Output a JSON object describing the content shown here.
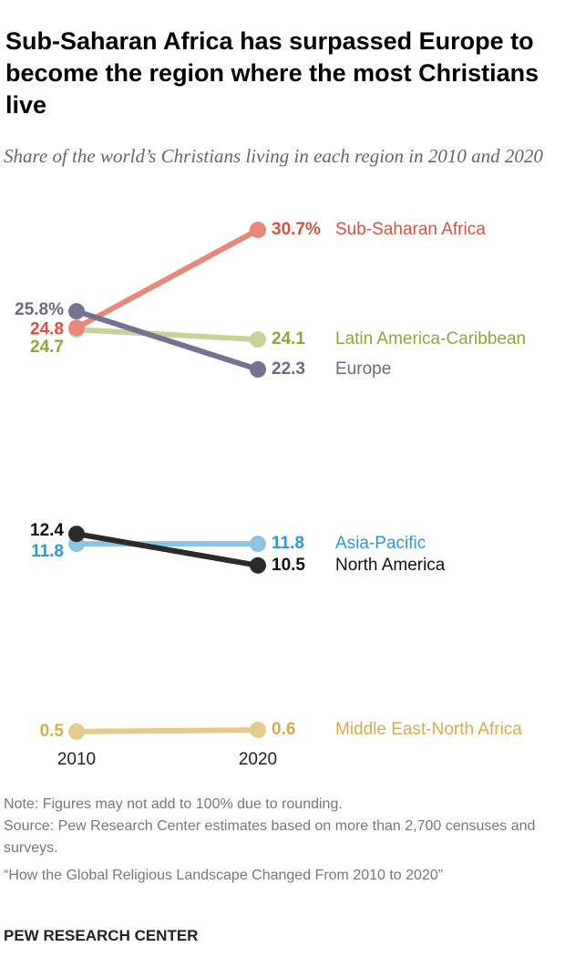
{
  "chart_data": {
    "type": "line",
    "title": "Sub-Saharan Africa has surpassed Europe to become the region where the most Christians live",
    "subtitle": "Share of the world’s Christians living in each region in 2010 and 2020",
    "categories": [
      "2010",
      "2020"
    ],
    "series": [
      {
        "name": "Sub-Saharan Africa",
        "color": "#e8887a",
        "label_color": "#d6513f",
        "values": [
          24.8,
          30.7
        ],
        "value_labels": [
          "24.8",
          "30.7%"
        ]
      },
      {
        "name": "Latin America-Caribbean",
        "color": "#c6d49c",
        "label_color": "#8fa53a",
        "values": [
          24.7,
          24.1
        ],
        "value_labels": [
          "24.7",
          "24.1"
        ]
      },
      {
        "name": "Europe",
        "color": "#777190",
        "label_color": "#6d6885",
        "values": [
          25.8,
          22.3
        ],
        "value_labels": [
          "25.8%",
          "22.3"
        ]
      },
      {
        "name": "Asia-Pacific",
        "color": "#8ec3e2",
        "label_color": "#2f98cf",
        "values": [
          11.8,
          11.8
        ],
        "value_labels": [
          "11.8",
          "11.8"
        ]
      },
      {
        "name": "North America",
        "color": "#2b2b2b",
        "label_color": "#111111",
        "values": [
          12.4,
          10.5
        ],
        "value_labels": [
          "12.4",
          "10.5"
        ]
      },
      {
        "name": "Middle East-North Africa",
        "color": "#e5cb8c",
        "label_color": "#d5ac4d",
        "values": [
          0.5,
          0.6
        ],
        "value_labels": [
          "0.5",
          "0.6"
        ]
      }
    ],
    "note": "Note: Figures may not add to 100% due to rounding.",
    "source": "Source: Pew Research Center estimates based on more than 2,700 censuses and surveys.",
    "report": "“How the Global Religious Landscape Changed From 2010 to 2020”",
    "credit": "PEW RESEARCH CENTER"
  }
}
